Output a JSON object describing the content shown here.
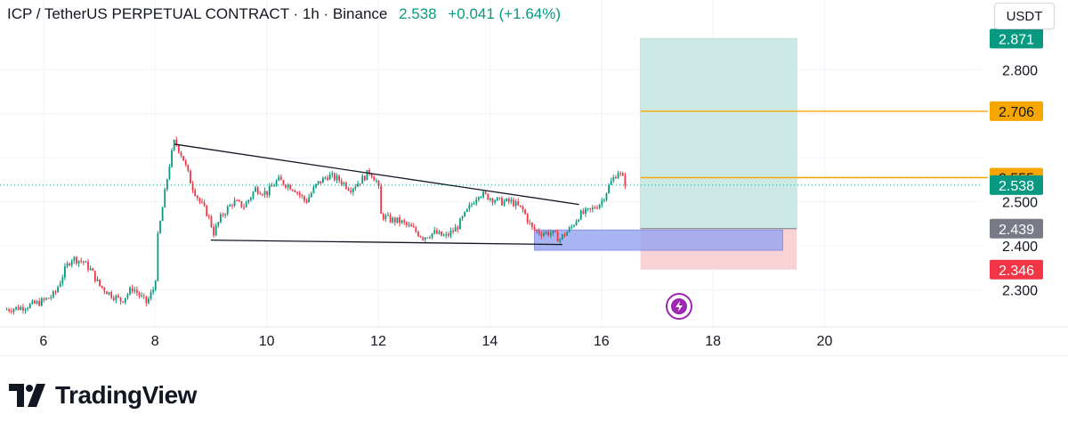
{
  "header": {
    "symbol": "ICP / TetherUS PERPETUAL CONTRACT · 1h · Binance",
    "price": "2.538",
    "change": "+0.041 (+1.64%)"
  },
  "currency_button": "USDT",
  "brand": {
    "name": "TradingView"
  },
  "colors": {
    "up": "#089981",
    "down": "#f23645",
    "target_line": "#f7a600",
    "stop_label": "#f23645",
    "entry_label": "#787b86",
    "profit_zone": "#cce9e5",
    "loss_zone": "#f7d3d6",
    "demand_zone": "#9aa7f0",
    "lightning_badge": "#9c27b0"
  },
  "icons": {
    "lightning": "lightning-icon"
  },
  "chart_data": {
    "type": "candlestick",
    "title": "ICP / TetherUS PERPETUAL CONTRACT · 1h · Binance",
    "x_ticks": [
      "6",
      "8",
      "10",
      "12",
      "14",
      "16",
      "18",
      "20"
    ],
    "y_ticks": [
      "2.300",
      "2.400",
      "2.500",
      "2.800"
    ],
    "ylim": [
      2.22,
      2.89
    ],
    "xlim": [
      5.3,
      22.8
    ],
    "grid": true,
    "current_price": 2.538,
    "price_labels": [
      {
        "name": "profit-target-label",
        "value": 2.871,
        "text": "2.871",
        "color": "#089981"
      },
      {
        "name": "target-line-label",
        "value": 2.706,
        "text": "2.706",
        "color": "#f7a600"
      },
      {
        "name": "resistance-line-label",
        "value": 2.555,
        "text": "2.555",
        "color": "#f7a600"
      },
      {
        "name": "current-price-label",
        "value": 2.538,
        "text": "2.538",
        "color": "#089981"
      },
      {
        "name": "entry-label",
        "value": 2.439,
        "text": "2.439",
        "color": "#787b86"
      },
      {
        "name": "stop-loss-label",
        "value": 2.346,
        "text": "2.346",
        "color": "#f23645"
      }
    ],
    "horizontal_lines": [
      {
        "name": "target-line",
        "value": 2.706,
        "x_from": 16.7,
        "color": "#f7a600"
      },
      {
        "name": "resistance-line",
        "value": 2.555,
        "x_from": 16.7,
        "color": "#f7a600"
      }
    ],
    "long_position": {
      "x_from": 16.7,
      "x_to": 19.5,
      "entry": 2.439,
      "target": 2.871,
      "stop": 2.346
    },
    "demand_zone": {
      "x_from": 14.8,
      "x_to": 19.25,
      "y_from": 2.39,
      "y_to": 2.436
    },
    "triangle": {
      "upper": [
        [
          8.35,
          2.631
        ],
        [
          15.6,
          2.494
        ]
      ],
      "lower": [
        [
          9.0,
          2.413
        ],
        [
          15.3,
          2.403
        ]
      ]
    },
    "close_path": [
      [
        5.3,
        2.255
      ],
      [
        5.6,
        2.26
      ],
      [
        5.9,
        2.27
      ],
      [
        6.0,
        2.275
      ],
      [
        6.2,
        2.29
      ],
      [
        6.4,
        2.35
      ],
      [
        6.5,
        2.372
      ],
      [
        6.7,
        2.365
      ],
      [
        6.85,
        2.345
      ],
      [
        7.0,
        2.31
      ],
      [
        7.2,
        2.29
      ],
      [
        7.4,
        2.275
      ],
      [
        7.6,
        2.305
      ],
      [
        7.7,
        2.29
      ],
      [
        7.85,
        2.27
      ],
      [
        8.0,
        2.31
      ],
      [
        8.05,
        2.42
      ],
      [
        8.15,
        2.5
      ],
      [
        8.25,
        2.58
      ],
      [
        8.35,
        2.64
      ],
      [
        8.5,
        2.6
      ],
      [
        8.65,
        2.54
      ],
      [
        8.8,
        2.5
      ],
      [
        8.95,
        2.47
      ],
      [
        9.05,
        2.43
      ],
      [
        9.2,
        2.47
      ],
      [
        9.4,
        2.5
      ],
      [
        9.6,
        2.49
      ],
      [
        9.8,
        2.53
      ],
      [
        10.0,
        2.52
      ],
      [
        10.2,
        2.55
      ],
      [
        10.5,
        2.53
      ],
      [
        10.7,
        2.5
      ],
      [
        10.9,
        2.54
      ],
      [
        11.1,
        2.56
      ],
      [
        11.3,
        2.55
      ],
      [
        11.5,
        2.53
      ],
      [
        11.7,
        2.55
      ],
      [
        11.85,
        2.57
      ],
      [
        12.0,
        2.54
      ],
      [
        12.05,
        2.47
      ],
      [
        12.2,
        2.46
      ],
      [
        12.4,
        2.455
      ],
      [
        12.6,
        2.44
      ],
      [
        12.8,
        2.42
      ],
      [
        13.0,
        2.43
      ],
      [
        13.2,
        2.42
      ],
      [
        13.4,
        2.44
      ],
      [
        13.6,
        2.48
      ],
      [
        13.8,
        2.52
      ],
      [
        14.0,
        2.51
      ],
      [
        14.2,
        2.5
      ],
      [
        14.4,
        2.5
      ],
      [
        14.6,
        2.48
      ],
      [
        14.75,
        2.44
      ],
      [
        14.9,
        2.43
      ],
      [
        15.1,
        2.43
      ],
      [
        15.25,
        2.415
      ],
      [
        15.45,
        2.44
      ],
      [
        15.6,
        2.47
      ],
      [
        15.8,
        2.48
      ],
      [
        16.0,
        2.5
      ],
      [
        16.15,
        2.54
      ],
      [
        16.3,
        2.57
      ],
      [
        16.45,
        2.538
      ]
    ]
  }
}
